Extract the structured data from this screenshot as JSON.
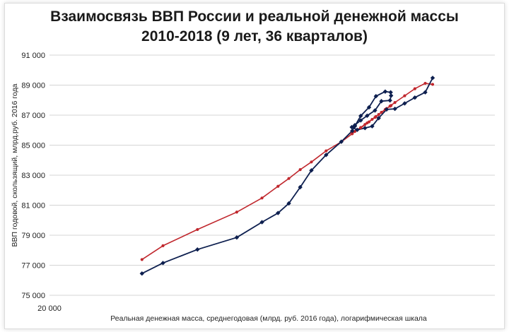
{
  "chart_data": {
    "type": "line",
    "title_line1": "Взаимосвязь ВВП России и реальной денежной массы",
    "title_line2": "2010-2018 (9 лет, 36 кварталов)",
    "xlabel": "Реальная денежная масса, среднегодовая (млрд. руб. 2016 года), логарифмическая шкала",
    "ylabel": "ВВП годовой, скользящий, млрд.руб. 2016 года",
    "x_scale": "log",
    "x_tick_labels": [
      "20 000"
    ],
    "y_tick_labels": [
      "75 000",
      "77 000",
      "79 000",
      "81 000",
      "83 000",
      "85 000",
      "87 000",
      "89 000",
      "91 000"
    ],
    "y_ticks": [
      75000,
      77000,
      79000,
      81000,
      83000,
      85000,
      87000,
      89000,
      91000
    ],
    "ylim": [
      75000,
      91000
    ],
    "grid": "horizontal",
    "series": [
      {
        "color": "#0d1f4f",
        "marker": "diamond",
        "points": [
          [
            0.1325,
            76450
          ],
          [
            0.1952,
            77150
          ],
          [
            0.2981,
            78050
          ],
          [
            0.4154,
            78850
          ],
          [
            0.4907,
            79870
          ],
          [
            0.5386,
            80480
          ],
          [
            0.5708,
            81120
          ],
          [
            0.6048,
            82200
          ],
          [
            0.6382,
            83320
          ],
          [
            0.6821,
            84350
          ],
          [
            0.7275,
            85230
          ],
          [
            0.76,
            85950
          ],
          [
            0.7677,
            86260
          ],
          [
            0.7853,
            86950
          ],
          [
            0.8101,
            87520
          ],
          [
            0.8308,
            88260
          ],
          [
            0.8585,
            88570
          ],
          [
            0.8747,
            88520
          ],
          [
            0.8759,
            88300
          ],
          [
            0.8727,
            87980
          ],
          [
            0.8471,
            87930
          ],
          [
            0.8279,
            87310
          ],
          [
            0.8045,
            86960
          ],
          [
            0.7853,
            86650
          ],
          [
            0.7678,
            86330
          ],
          [
            0.7587,
            86200
          ],
          [
            0.7748,
            86020
          ],
          [
            0.7981,
            86140
          ],
          [
            0.8195,
            86260
          ],
          [
            0.8389,
            86800
          ],
          [
            0.8626,
            87380
          ],
          [
            0.8874,
            87420
          ],
          [
            0.9165,
            87780
          ],
          [
            0.9469,
            88170
          ],
          [
            0.9779,
            88520
          ],
          [
            1.0,
            89480
          ]
        ]
      },
      {
        "color": "#c0272d",
        "marker": "dot",
        "points": [
          [
            0.1325,
            77380
          ],
          [
            0.1952,
            78300
          ],
          [
            0.2981,
            79380
          ],
          [
            0.4154,
            80540
          ],
          [
            0.4907,
            81480
          ],
          [
            0.5386,
            82260
          ],
          [
            0.5708,
            82780
          ],
          [
            0.6048,
            83370
          ],
          [
            0.6382,
            83880
          ],
          [
            0.6821,
            84620
          ],
          [
            0.7275,
            85220
          ],
          [
            0.76,
            85760
          ],
          [
            0.7677,
            85910
          ],
          [
            0.7853,
            86150
          ],
          [
            0.8101,
            86550
          ],
          [
            0.8308,
            86910
          ],
          [
            0.8585,
            87380
          ],
          [
            0.8747,
            87620
          ],
          [
            0.8759,
            87640
          ],
          [
            0.8727,
            87600
          ],
          [
            0.8471,
            87190
          ],
          [
            0.8279,
            86850
          ],
          [
            0.8045,
            86480
          ],
          [
            0.7853,
            86180
          ],
          [
            0.7678,
            85920
          ],
          [
            0.7587,
            85780
          ],
          [
            0.7748,
            86020
          ],
          [
            0.7981,
            86380
          ],
          [
            0.8195,
            86720
          ],
          [
            0.8389,
            87040
          ],
          [
            0.8626,
            87440
          ],
          [
            0.8874,
            87840
          ],
          [
            0.9165,
            88290
          ],
          [
            0.9469,
            88760
          ],
          [
            0.9779,
            89120
          ],
          [
            1.0,
            89050
          ]
        ]
      }
    ]
  }
}
